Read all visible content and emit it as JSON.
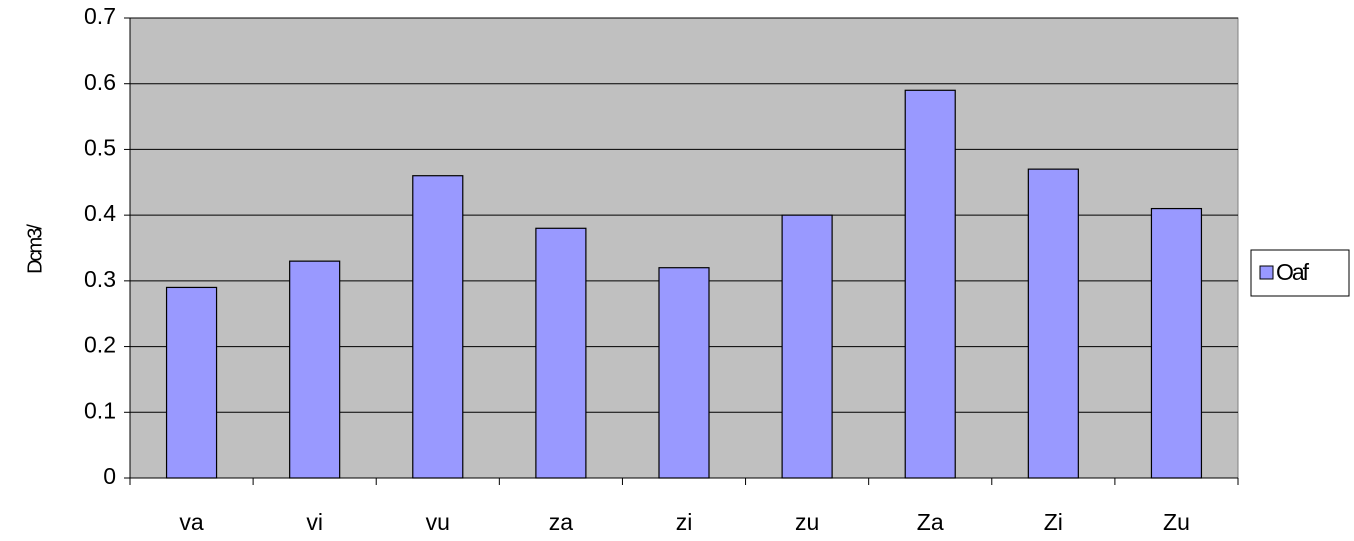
{
  "chart_data": {
    "type": "bar",
    "y_label": "Dcm3/",
    "categories": [
      "va",
      "vi",
      "vu",
      "za",
      "zi",
      "zu",
      "Za",
      "Zi",
      "Zu"
    ],
    "series": [
      {
        "name": "Oaf",
        "color": "#9999ff",
        "values": [
          0.29,
          0.33,
          0.46,
          0.38,
          0.32,
          0.4,
          0.59,
          0.47,
          0.41
        ]
      }
    ],
    "ylim": [
      0,
      0.7
    ],
    "yticks": [
      0,
      0.1,
      0.2,
      0.3,
      0.4,
      0.5,
      0.6,
      0.7
    ],
    "grid": true,
    "legend": "right",
    "plot_background": "#c0c0c0"
  }
}
